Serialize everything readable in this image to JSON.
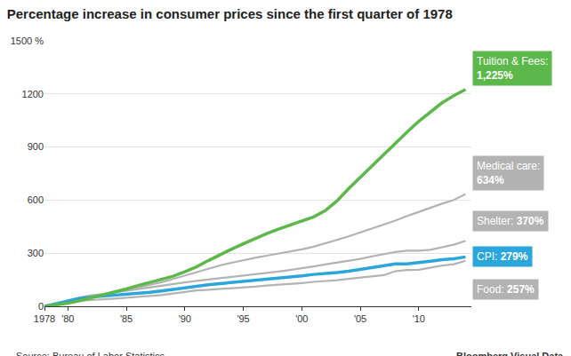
{
  "chart_data": {
    "type": "line",
    "title": "Percentage increase in consumer prices since the first quarter of 1978",
    "source": "Source: Bureau of Labor Statistics",
    "credit": "Bloomberg Visual Data",
    "x": [
      1978,
      1979,
      1980,
      1981,
      1982,
      1983,
      1984,
      1985,
      1986,
      1987,
      1988,
      1989,
      1990,
      1991,
      1992,
      1993,
      1994,
      1995,
      1996,
      1997,
      1998,
      1999,
      2000,
      2001,
      2002,
      2003,
      2004,
      2005,
      2006,
      2007,
      2008,
      2009,
      2010,
      2011,
      2012,
      2013,
      2014
    ],
    "xlim": [
      1978,
      2014.5
    ],
    "xticks": [
      1978,
      {
        "value": 1980,
        "label": "'80"
      },
      {
        "value": 1985,
        "label": "'85"
      },
      {
        "value": 1990,
        "label": "'90"
      },
      {
        "value": 1995,
        "label": "'95"
      },
      {
        "value": 2000,
        "label": "'00"
      },
      {
        "value": 2005,
        "label": "'05"
      },
      {
        "value": 2010,
        "label": "'10"
      }
    ],
    "ylim": [
      0,
      1500
    ],
    "yticks": [
      0,
      300,
      600,
      900,
      1200,
      {
        "value": 1500,
        "label": "1500 %"
      }
    ],
    "grid": true,
    "series": [
      {
        "name": "Medical care",
        "label": "Medical care:",
        "color": "#b3b3b3",
        "values": [
          0,
          10,
          22,
          37,
          52,
          67,
          80,
          92,
          106,
          120,
          136,
          154,
          174,
          195,
          214,
          231,
          246,
          261,
          274,
          286,
          298,
          309,
          322,
          337,
          355,
          375,
          395,
          417,
          438,
          462,
          484,
          510,
          534,
          558,
          580,
          601,
          634
        ],
        "value_labels": [
          null,
          null,
          null,
          null,
          null,
          null,
          null,
          null,
          null,
          null,
          null,
          null,
          null,
          null,
          null,
          null,
          null,
          null,
          null,
          null,
          null,
          null,
          null,
          null,
          null,
          null,
          null,
          null,
          null,
          null,
          null,
          null,
          null,
          null,
          null,
          null,
          "634%"
        ]
      },
      {
        "name": "Shelter",
        "label": "Shelter:",
        "color": "#b3b3b3",
        "values": [
          0,
          14,
          33,
          50,
          62,
          68,
          78,
          88,
          98,
          107,
          116,
          125,
          135,
          144,
          151,
          158,
          165,
          172,
          180,
          188,
          196,
          205,
          214,
          225,
          236,
          246,
          256,
          268,
          282,
          296,
          307,
          314,
          314,
          319,
          332,
          348,
          370
        ],
        "value_labels": [
          null,
          null,
          null,
          null,
          null,
          null,
          null,
          null,
          null,
          null,
          null,
          null,
          null,
          null,
          null,
          null,
          null,
          null,
          null,
          null,
          null,
          null,
          null,
          null,
          null,
          null,
          null,
          null,
          null,
          null,
          null,
          null,
          null,
          null,
          null,
          null,
          "370%"
        ]
      },
      {
        "name": "Food",
        "label": "Food:",
        "color": "#b3b3b3",
        "values": [
          0,
          10,
          20,
          30,
          35,
          38,
          43,
          48,
          52,
          57,
          63,
          72,
          82,
          90,
          93,
          97,
          101,
          106,
          111,
          117,
          121,
          125,
          131,
          138,
          142,
          147,
          155,
          162,
          167,
          176,
          198,
          205,
          206,
          218,
          230,
          238,
          257
        ],
        "value_labels": [
          null,
          null,
          null,
          null,
          null,
          null,
          null,
          null,
          null,
          null,
          null,
          null,
          null,
          null,
          null,
          null,
          null,
          null,
          null,
          null,
          null,
          null,
          null,
          null,
          null,
          null,
          null,
          null,
          null,
          null,
          null,
          null,
          null,
          null,
          null,
          null,
          "257%"
        ]
      },
      {
        "name": "CPI",
        "label": "CPI:",
        "color": "#2aa6dc",
        "values": [
          0,
          15,
          30,
          44,
          52,
          57,
          64,
          70,
          73,
          79,
          87,
          96,
          106,
          115,
          122,
          128,
          134,
          141,
          148,
          154,
          157,
          163,
          172,
          180,
          184,
          191,
          198,
          209,
          218,
          227,
          240,
          239,
          245,
          255,
          263,
          268,
          279
        ],
        "value_labels": [
          null,
          null,
          null,
          null,
          null,
          null,
          null,
          null,
          null,
          null,
          null,
          null,
          null,
          null,
          null,
          null,
          null,
          null,
          null,
          null,
          null,
          null,
          null,
          null,
          null,
          null,
          null,
          null,
          null,
          null,
          null,
          null,
          null,
          null,
          null,
          null,
          "279%"
        ]
      },
      {
        "name": "Tuition & Fees",
        "label": "Tuition & Fees:",
        "color": "#5cb84a",
        "values": [
          0,
          7,
          17,
          31,
          47,
          63,
          80,
          98,
          117,
          134,
          150,
          170,
          195,
          223,
          258,
          292,
          323,
          353,
          383,
          411,
          436,
          460,
          480,
          505,
          540,
          595,
          665,
          730,
          795,
          860,
          920,
          985,
          1045,
          1100,
          1150,
          1190,
          1225
        ],
        "value_labels": [
          null,
          null,
          null,
          null,
          null,
          null,
          null,
          null,
          null,
          null,
          null,
          null,
          null,
          null,
          null,
          null,
          null,
          null,
          null,
          null,
          null,
          null,
          null,
          null,
          null,
          null,
          null,
          null,
          null,
          null,
          null,
          null,
          null,
          null,
          null,
          null,
          "1,225%"
        ]
      }
    ]
  }
}
